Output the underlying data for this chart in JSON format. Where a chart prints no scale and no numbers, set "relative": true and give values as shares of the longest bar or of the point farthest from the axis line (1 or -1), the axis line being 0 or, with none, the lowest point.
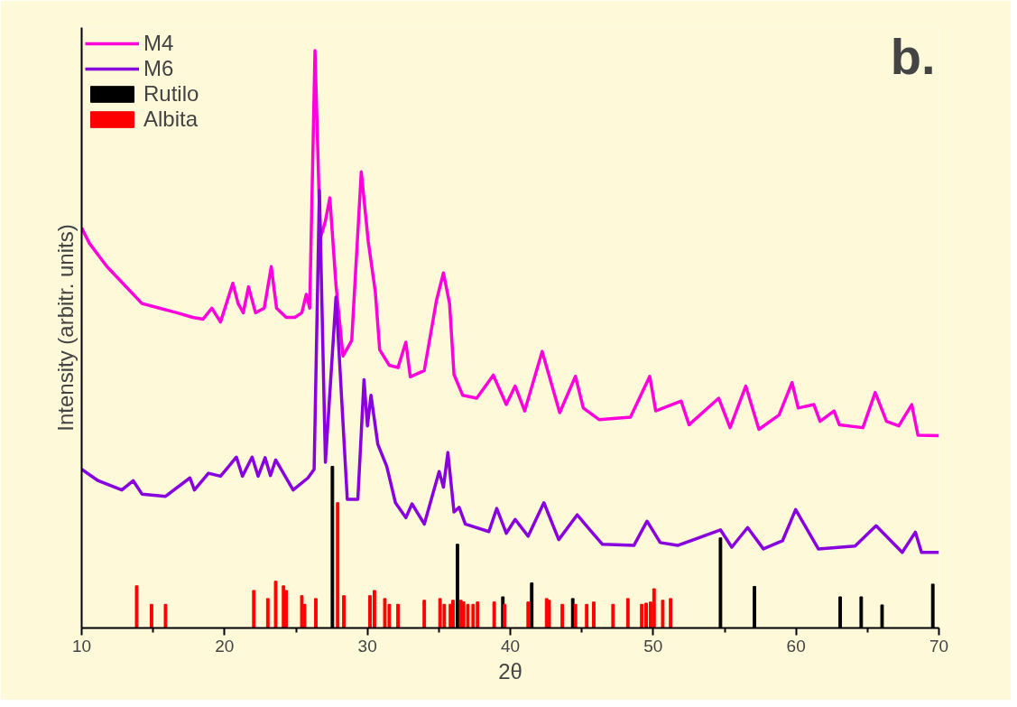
{
  "chart_data": {
    "type": "line",
    "xlabel": "2θ",
    "ylabel": "Intensity (arbitr. units)",
    "annotations": [
      "b."
    ],
    "relative": true,
    "legend": "top left",
    "xlim": [
      10,
      70
    ],
    "xticks": [
      10,
      20,
      30,
      40,
      50,
      60,
      70
    ],
    "series": [
      {
        "name": "M4",
        "color": "#ff00dd",
        "x": [
          10.0,
          10.55,
          11.77,
          13.0,
          14.22,
          15.44,
          16.67,
          17.77,
          18.5,
          19.11,
          19.72,
          20.58,
          20.95,
          21.31,
          21.68,
          22.17,
          22.78,
          23.27,
          23.64,
          24.31,
          24.92,
          25.41,
          25.72,
          25.96,
          26.33,
          26.7,
          27.06,
          27.37,
          27.8,
          28.29,
          28.9,
          29.57,
          30.06,
          30.55,
          30.86,
          31.53,
          32.14,
          32.69,
          33.0,
          33.98,
          34.83,
          35.32,
          35.75,
          36.06,
          36.67,
          37.65,
          38.81,
          39.72,
          40.34,
          41.01,
          42.23,
          43.46,
          44.56,
          45.11,
          46.21,
          48.41,
          49.76,
          50.18,
          51.96,
          52.51,
          54.59,
          55.38,
          56.48,
          57.4,
          58.81,
          59.72,
          60.15,
          61.25,
          61.68,
          62.66,
          63.03,
          64.68,
          65.54,
          66.33,
          67.19,
          68.1,
          68.53,
          70.0
        ],
        "values": [
          0.693,
          0.666,
          0.626,
          0.594,
          0.562,
          0.554,
          0.546,
          0.538,
          0.535,
          0.554,
          0.53,
          0.597,
          0.562,
          0.546,
          0.591,
          0.546,
          0.554,
          0.626,
          0.554,
          0.538,
          0.538,
          0.546,
          0.578,
          0.554,
          1.0,
          0.674,
          0.705,
          0.745,
          0.594,
          0.471,
          0.498,
          0.79,
          0.669,
          0.583,
          0.482,
          0.455,
          0.451,
          0.495,
          0.435,
          0.446,
          0.567,
          0.615,
          0.562,
          0.439,
          0.403,
          0.398,
          0.438,
          0.387,
          0.419,
          0.376,
          0.479,
          0.373,
          0.436,
          0.381,
          0.361,
          0.365,
          0.436,
          0.376,
          0.393,
          0.352,
          0.398,
          0.347,
          0.419,
          0.344,
          0.369,
          0.425,
          0.381,
          0.387,
          0.358,
          0.376,
          0.352,
          0.347,
          0.408,
          0.358,
          0.35,
          0.387,
          0.334,
          0.333
        ]
      },
      {
        "name": "M6",
        "color": "#8800dd",
        "x": [
          10.0,
          11.16,
          12.81,
          13.61,
          14.22,
          15.87,
          17.58,
          17.89,
          18.87,
          19.72,
          20.83,
          21.25,
          21.93,
          22.35,
          22.84,
          23.21,
          23.58,
          24.8,
          25.84,
          26.27,
          26.64,
          27.06,
          27.8,
          28.59,
          29.33,
          29.76,
          30.0,
          30.25,
          30.73,
          31.35,
          31.96,
          32.69,
          33.12,
          33.98,
          35.02,
          35.32,
          35.63,
          36.06,
          36.42,
          36.85,
          38.5,
          39.05,
          39.72,
          40.34,
          41.25,
          42.35,
          43.39,
          44.68,
          45.6,
          46.45,
          48.65,
          49.57,
          50.49,
          51.71,
          54.71,
          55.5,
          56.61,
          57.71,
          59.05,
          59.97,
          61.56,
          64.13,
          65.6,
          67.43,
          68.35,
          68.78,
          70.0
        ],
        "values": [
          0.275,
          0.255,
          0.239,
          0.255,
          0.232,
          0.228,
          0.26,
          0.239,
          0.268,
          0.263,
          0.296,
          0.263,
          0.296,
          0.263,
          0.295,
          0.264,
          0.291,
          0.239,
          0.26,
          0.275,
          0.758,
          0.287,
          0.573,
          0.223,
          0.223,
          0.43,
          0.35,
          0.403,
          0.318,
          0.28,
          0.217,
          0.191,
          0.215,
          0.18,
          0.271,
          0.244,
          0.304,
          0.201,
          0.209,
          0.18,
          0.167,
          0.207,
          0.164,
          0.188,
          0.159,
          0.217,
          0.153,
          0.196,
          0.169,
          0.145,
          0.143,
          0.185,
          0.148,
          0.143,
          0.17,
          0.14,
          0.174,
          0.137,
          0.151,
          0.205,
          0.137,
          0.142,
          0.177,
          0.131,
          0.166,
          0.131,
          0.131
        ]
      },
      {
        "name": "Rutilo",
        "type": "bar",
        "color": "#000000",
        "x": [
          27.55,
          36.3,
          39.48,
          41.5,
          44.37,
          54.71,
          57.09,
          63.09,
          64.56,
          66.02,
          69.57
        ],
        "values": [
          0.28,
          0.145,
          0.054,
          0.078,
          0.051,
          0.156,
          0.072,
          0.054,
          0.054,
          0.04,
          0.076
        ]
      },
      {
        "name": "Albita",
        "type": "bar",
        "color": "#ff0000",
        "x": [
          13.85,
          14.89,
          15.87,
          22.05,
          23.03,
          23.58,
          24.13,
          24.31,
          25.41,
          25.6,
          26.39,
          27.92,
          28.35,
          30.18,
          30.49,
          31.22,
          31.53,
          32.14,
          33.98,
          35.08,
          35.38,
          35.81,
          35.99,
          36.54,
          36.73,
          37.03,
          37.4,
          37.71,
          38.87,
          39.6,
          41.25,
          42.54,
          42.72,
          43.64,
          44.56,
          45.35,
          45.84,
          47.19,
          48.23,
          49.2,
          49.51,
          49.82,
          50.06,
          50.67,
          51.22
        ],
        "values": [
          0.073,
          0.041,
          0.041,
          0.065,
          0.051,
          0.081,
          0.073,
          0.065,
          0.056,
          0.041,
          0.051,
          0.217,
          0.056,
          0.056,
          0.065,
          0.051,
          0.041,
          0.041,
          0.048,
          0.051,
          0.041,
          0.041,
          0.048,
          0.048,
          0.045,
          0.041,
          0.041,
          0.045,
          0.045,
          0.041,
          0.045,
          0.051,
          0.048,
          0.041,
          0.041,
          0.041,
          0.045,
          0.041,
          0.051,
          0.041,
          0.043,
          0.045,
          0.068,
          0.048,
          0.051
        ]
      }
    ]
  }
}
